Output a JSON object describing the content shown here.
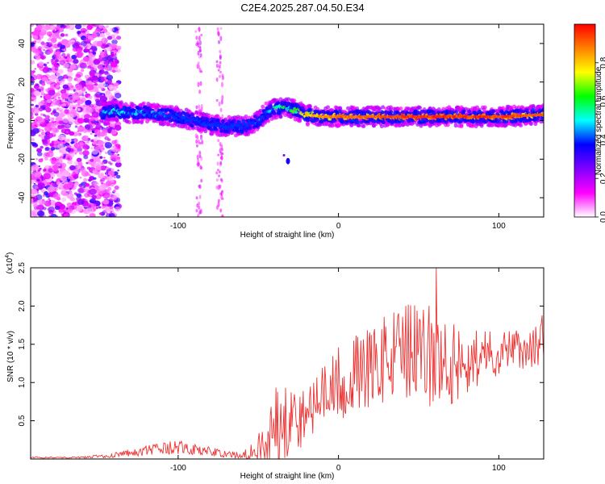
{
  "title": "C2E4.2025.287.04.50.E34",
  "chart_data": [
    {
      "type": "heatmap",
      "name": "spectrogram",
      "xlabel": "Height of straight line (km)",
      "ylabel": "Frequency (Hz)",
      "xlim": [
        -192,
        128
      ],
      "ylim": [
        -50,
        50
      ],
      "xticks": [
        -100,
        0,
        100
      ],
      "xtick_labels": [
        "-100",
        "0",
        "100"
      ],
      "yticks": [
        -40,
        -20,
        0,
        20,
        40
      ],
      "ytick_labels": [
        "-40",
        "-20",
        "0",
        "20",
        "40"
      ],
      "colorbar": {
        "label": "Normalized spectral amplitude",
        "range": [
          0,
          1
        ],
        "ticks": [
          0.0,
          0.2,
          0.4,
          0.6,
          0.8
        ],
        "tick_labels": [
          "0.0",
          "0.2",
          "0.4",
          "0.6",
          "0.8"
        ],
        "colors": [
          "#ffffff",
          "#ff00ff",
          "#8000ff",
          "#0000ff",
          "#00ffff",
          "#00ff00",
          "#ffff00",
          "#ff8000",
          "#ff0000"
        ]
      },
      "noise_region_x": [
        -192,
        -137
      ],
      "signal_track": {
        "x": [
          -148,
          -140,
          -130,
          -120,
          -110,
          -100,
          -90,
          -80,
          -70,
          -60,
          -55,
          -50,
          -45,
          -40,
          -35,
          -30,
          -25,
          -20,
          -10,
          0,
          20,
          40,
          60,
          80,
          100,
          128
        ],
        "freq": [
          4,
          5,
          4,
          4,
          3,
          2,
          0,
          -2,
          -3,
          -3,
          -2,
          0,
          4,
          6,
          7,
          6,
          5,
          3,
          2,
          2,
          2,
          2,
          2,
          2,
          2,
          3
        ],
        "amplitude": [
          0.5,
          0.55,
          0.5,
          0.5,
          0.45,
          0.45,
          0.4,
          0.35,
          0.35,
          0.35,
          0.4,
          0.45,
          0.5,
          0.55,
          0.6,
          0.65,
          0.7,
          0.8,
          0.85,
          0.9,
          0.9,
          0.95,
          0.95,
          0.95,
          0.95,
          0.9
        ]
      },
      "isolated_blip": {
        "x": -33,
        "freq": -21,
        "amplitude": 0.25
      }
    },
    {
      "type": "line",
      "name": "snr",
      "xlabel": "Height of straight line (km)",
      "ylabel": "SNR (10 * v/v)",
      "y_scale_label": "(x10",
      "y_scale_exponent": "4",
      "xlim": [
        -192,
        128
      ],
      "ylim": [
        0,
        2.5
      ],
      "xticks": [
        -100,
        0,
        100
      ],
      "xtick_labels": [
        "-100",
        "0",
        "100"
      ],
      "yticks": [
        0.5,
        1.0,
        1.5,
        2.0,
        2.5
      ],
      "ytick_labels": [
        "0.5",
        "1.0",
        "1.5",
        "2.0",
        "2.5"
      ],
      "color": "#ee3333",
      "envelope": {
        "x": [
          -192,
          -160,
          -140,
          -130,
          -115,
          -100,
          -90,
          -80,
          -70,
          -60,
          -52,
          -46,
          -40,
          -34,
          -28,
          -24,
          -20,
          -16,
          -12,
          -8,
          -4,
          0,
          10,
          20,
          30,
          40,
          50,
          60,
          70,
          80,
          90,
          100,
          110,
          120,
          128
        ],
        "mean": [
          0.02,
          0.02,
          0.05,
          0.08,
          0.12,
          0.15,
          0.12,
          0.1,
          0.06,
          0.05,
          0.1,
          0.2,
          0.45,
          0.6,
          0.55,
          0.5,
          0.6,
          0.7,
          0.8,
          0.85,
          0.9,
          1.0,
          1.1,
          1.2,
          1.3,
          1.4,
          1.35,
          1.3,
          1.25,
          1.3,
          1.35,
          1.4,
          1.45,
          1.45,
          1.5
        ],
        "spread": [
          0.01,
          0.01,
          0.03,
          0.05,
          0.08,
          0.1,
          0.08,
          0.06,
          0.04,
          0.05,
          0.15,
          0.3,
          0.5,
          0.6,
          0.45,
          0.4,
          0.4,
          0.4,
          0.4,
          0.4,
          0.45,
          0.5,
          0.5,
          0.55,
          0.6,
          0.65,
          0.7,
          0.7,
          0.55,
          0.45,
          0.35,
          0.3,
          0.25,
          0.3,
          0.4
        ]
      },
      "peak": {
        "x": 61,
        "y": 2.5
      }
    }
  ]
}
